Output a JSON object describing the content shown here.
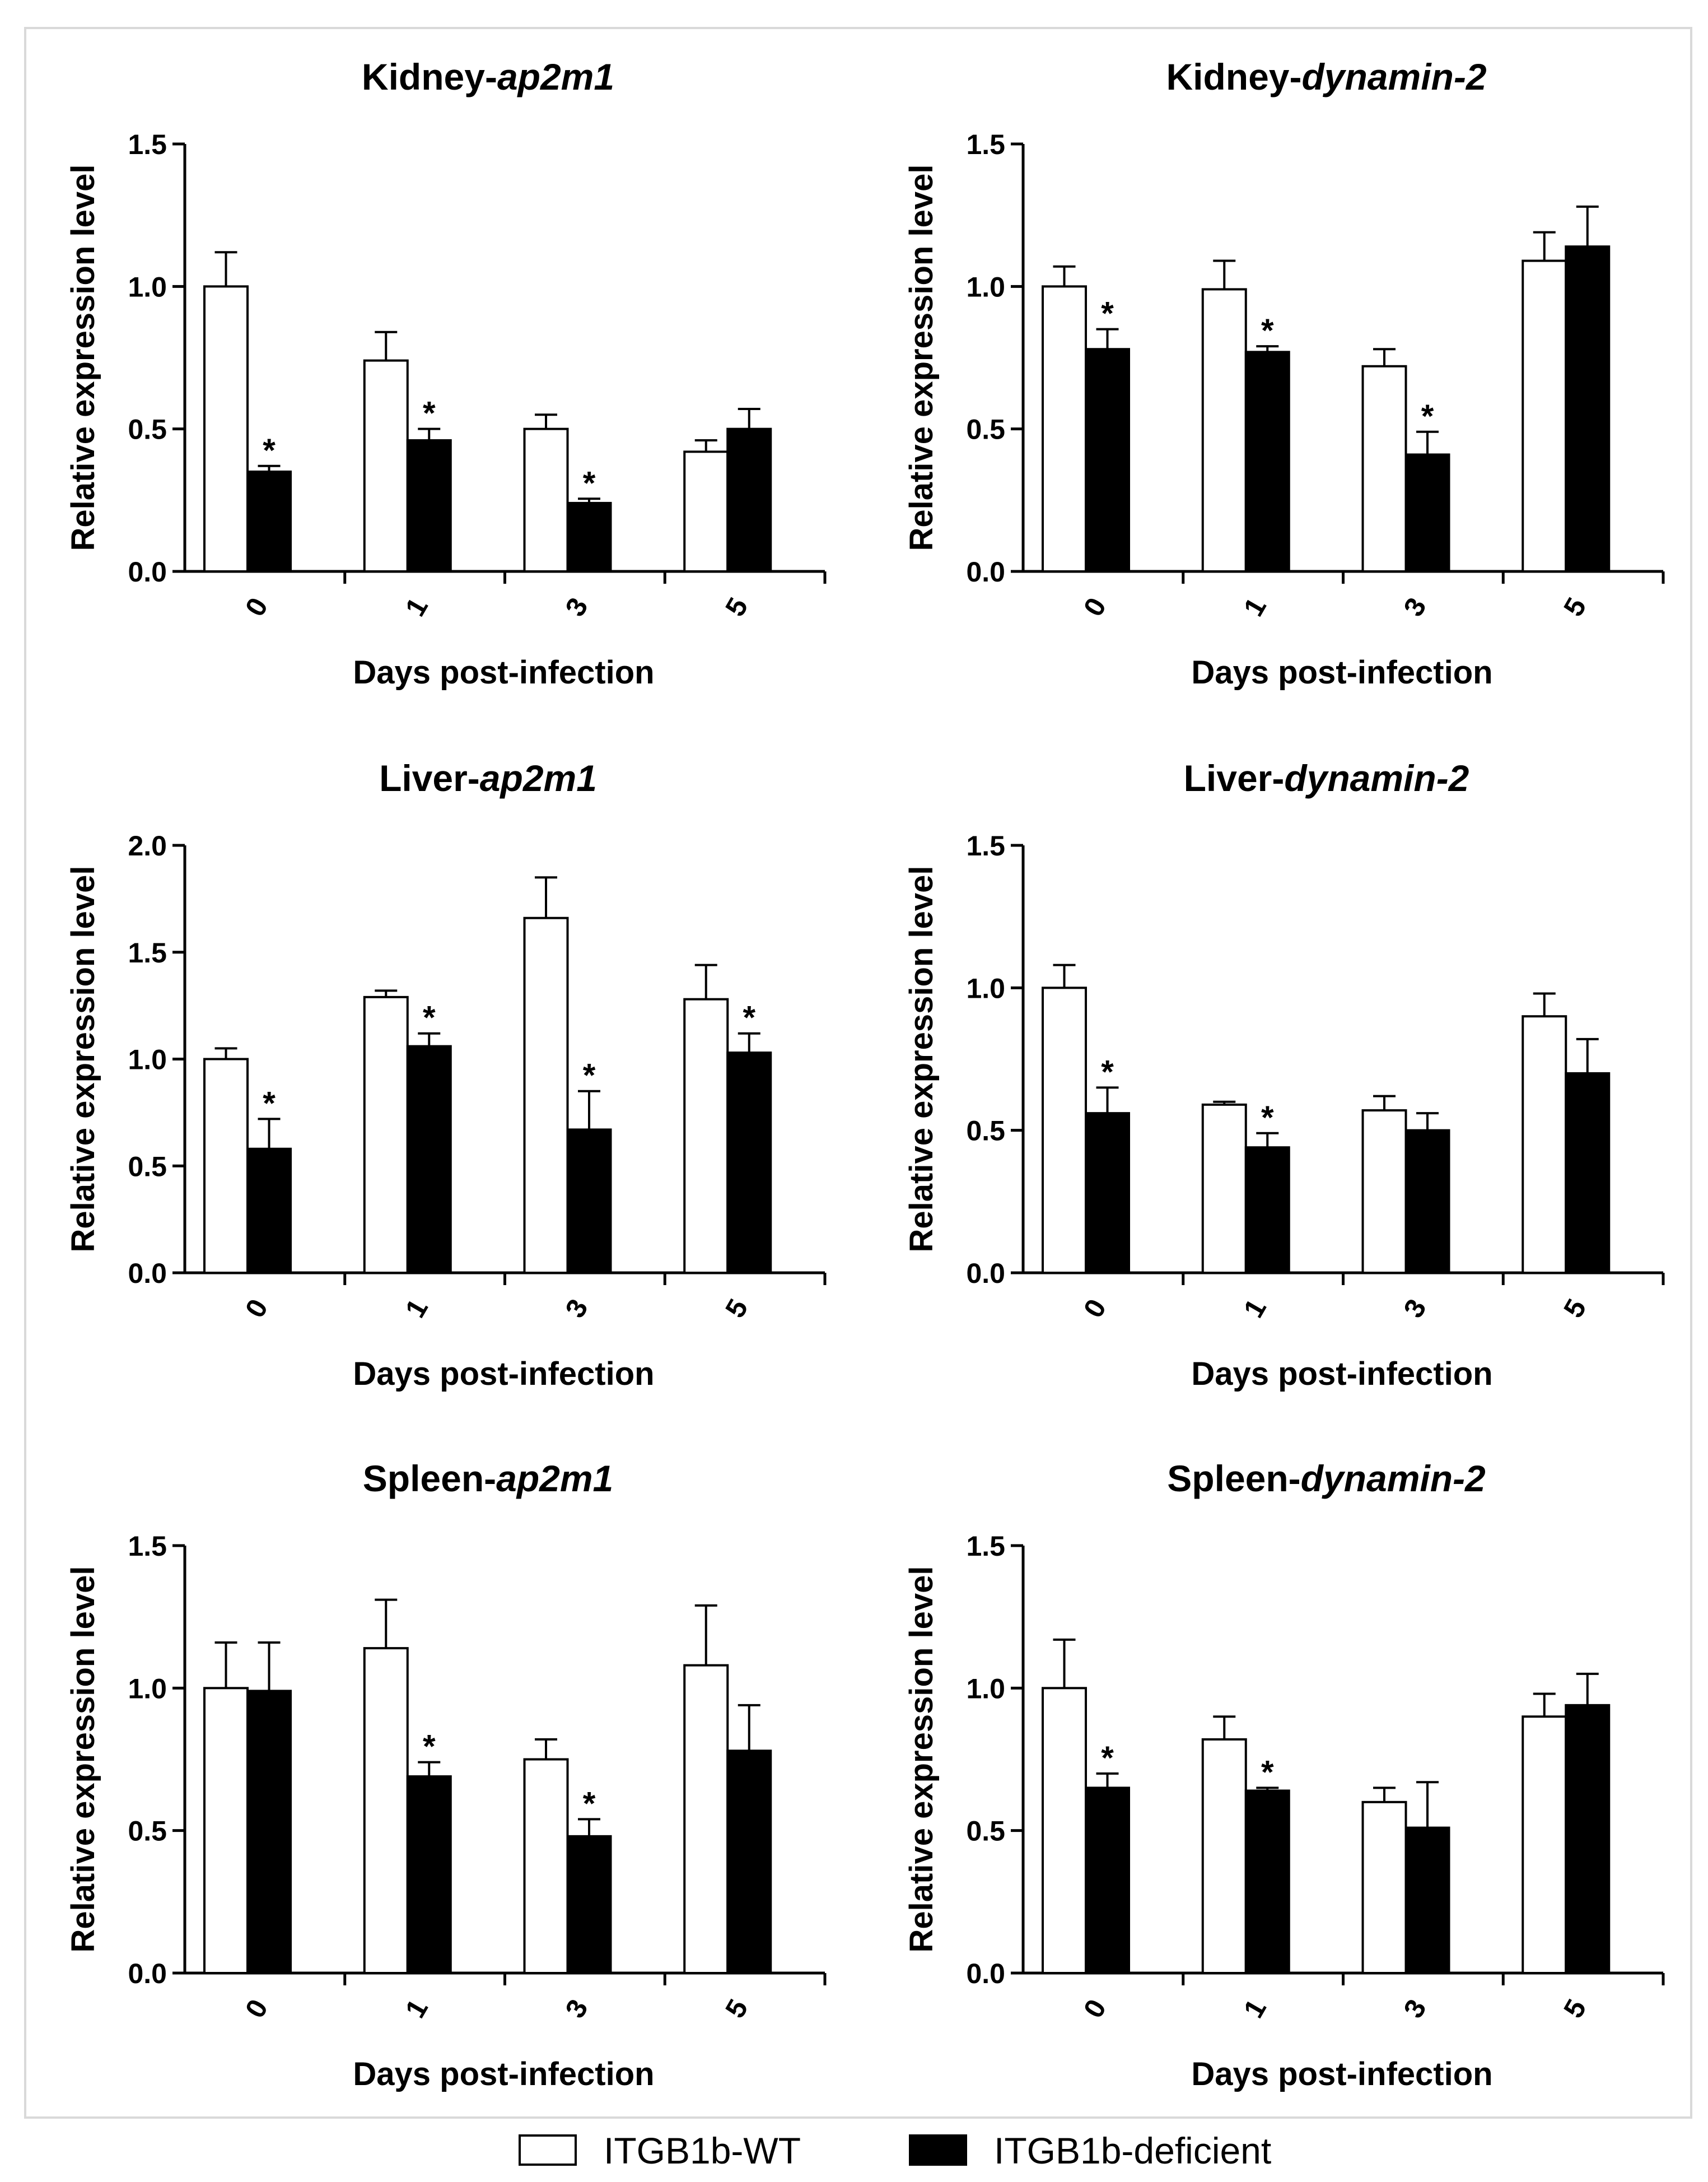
{
  "legend": {
    "wt_label": "ITGB1b-WT",
    "def_label": "ITGB1b-deficient",
    "wt_color": "#ffffff",
    "def_color": "#000000"
  },
  "chart_data": [
    {
      "type": "bar",
      "title_prefix": "Kidney-",
      "title_gene": "ap2m1",
      "xlabel": "Days post-infection",
      "ylabel": "Relative expression level",
      "categories": [
        "0",
        "1",
        "3",
        "5"
      ],
      "ylim": [
        0,
        1.5
      ],
      "yticks": [
        "0.0",
        "0.5",
        "1.0",
        "1.5"
      ],
      "series": [
        {
          "name": "ITGB1b-WT",
          "values": [
            1.0,
            0.74,
            0.5,
            0.42
          ],
          "errors": [
            0.12,
            0.1,
            0.05,
            0.04
          ],
          "sig": [
            "",
            "",
            "",
            ""
          ]
        },
        {
          "name": "ITGB1b-deficient",
          "values": [
            0.35,
            0.46,
            0.24,
            0.5
          ],
          "errors": [
            0.02,
            0.04,
            0.015,
            0.07
          ],
          "sig": [
            "*",
            "*",
            "*",
            ""
          ]
        }
      ]
    },
    {
      "type": "bar",
      "title_prefix": "Kidney-",
      "title_gene": "dynamin-2",
      "xlabel": "Days post-infection",
      "ylabel": "Relative expression level",
      "categories": [
        "0",
        "1",
        "3",
        "5"
      ],
      "ylim": [
        0,
        1.5
      ],
      "yticks": [
        "0.0",
        "0.5",
        "1.0",
        "1.5"
      ],
      "series": [
        {
          "name": "ITGB1b-WT",
          "values": [
            1.0,
            0.99,
            0.72,
            1.09
          ],
          "errors": [
            0.07,
            0.1,
            0.06,
            0.1
          ],
          "sig": [
            "",
            "",
            "",
            ""
          ]
        },
        {
          "name": "ITGB1b-deficient",
          "values": [
            0.78,
            0.77,
            0.41,
            1.14
          ],
          "errors": [
            0.07,
            0.02,
            0.08,
            0.14
          ],
          "sig": [
            "*",
            "*",
            "*",
            ""
          ]
        }
      ]
    },
    {
      "type": "bar",
      "title_prefix": "Liver-",
      "title_gene": "ap2m1",
      "xlabel": "Days post-infection",
      "ylabel": "Relative expression level",
      "categories": [
        "0",
        "1",
        "3",
        "5"
      ],
      "ylim": [
        0,
        2.0
      ],
      "yticks": [
        "0.0",
        "0.5",
        "1.0",
        "1.5",
        "2.0"
      ],
      "series": [
        {
          "name": "ITGB1b-WT",
          "values": [
            1.0,
            1.29,
            1.66,
            1.28
          ],
          "errors": [
            0.05,
            0.03,
            0.19,
            0.16
          ],
          "sig": [
            "",
            "",
            "",
            ""
          ]
        },
        {
          "name": "ITGB1b-deficient",
          "values": [
            0.58,
            1.06,
            0.67,
            1.03
          ],
          "errors": [
            0.14,
            0.06,
            0.18,
            0.09
          ],
          "sig": [
            "*",
            "*",
            "*",
            "*"
          ]
        }
      ]
    },
    {
      "type": "bar",
      "title_prefix": "Liver-",
      "title_gene": "dynamin-2",
      "xlabel": "Days post-infection",
      "ylabel": "Relative expression level",
      "categories": [
        "0",
        "1",
        "3",
        "5"
      ],
      "ylim": [
        0,
        1.5
      ],
      "yticks": [
        "0.0",
        "0.5",
        "1.0",
        "1.5"
      ],
      "series": [
        {
          "name": "ITGB1b-WT",
          "values": [
            1.0,
            0.59,
            0.57,
            0.9
          ],
          "errors": [
            0.08,
            0.01,
            0.05,
            0.08
          ],
          "sig": [
            "",
            "",
            "",
            ""
          ]
        },
        {
          "name": "ITGB1b-deficient",
          "values": [
            0.56,
            0.44,
            0.5,
            0.7
          ],
          "errors": [
            0.09,
            0.05,
            0.06,
            0.12
          ],
          "sig": [
            "*",
            "*",
            "",
            ""
          ]
        }
      ]
    },
    {
      "type": "bar",
      "title_prefix": "Spleen-",
      "title_gene": "ap2m1",
      "xlabel": "Days post-infection",
      "ylabel": "Relative expression level",
      "categories": [
        "0",
        "1",
        "3",
        "5"
      ],
      "ylim": [
        0,
        1.5
      ],
      "yticks": [
        "0.0",
        "0.5",
        "1.0",
        "1.5"
      ],
      "series": [
        {
          "name": "ITGB1b-WT",
          "values": [
            1.0,
            1.14,
            0.75,
            1.08
          ],
          "errors": [
            0.16,
            0.17,
            0.07,
            0.21
          ],
          "sig": [
            "",
            "",
            "",
            ""
          ]
        },
        {
          "name": "ITGB1b-deficient",
          "values": [
            0.99,
            0.69,
            0.48,
            0.78
          ],
          "errors": [
            0.17,
            0.05,
            0.06,
            0.16
          ],
          "sig": [
            "",
            "*",
            "*",
            ""
          ]
        }
      ]
    },
    {
      "type": "bar",
      "title_prefix": "Spleen-",
      "title_gene": "dynamin-2",
      "xlabel": "Days post-infection",
      "ylabel": "Relative expression level",
      "categories": [
        "0",
        "1",
        "3",
        "5"
      ],
      "ylim": [
        0,
        1.5
      ],
      "yticks": [
        "0.0",
        "0.5",
        "1.0",
        "1.5"
      ],
      "series": [
        {
          "name": "ITGB1b-WT",
          "values": [
            1.0,
            0.82,
            0.6,
            0.9
          ],
          "errors": [
            0.17,
            0.08,
            0.05,
            0.08
          ],
          "sig": [
            "",
            "",
            "",
            ""
          ]
        },
        {
          "name": "ITGB1b-deficient",
          "values": [
            0.65,
            0.64,
            0.51,
            0.94
          ],
          "errors": [
            0.05,
            0.01,
            0.16,
            0.11
          ],
          "sig": [
            "*",
            "*",
            "",
            ""
          ]
        }
      ]
    }
  ]
}
